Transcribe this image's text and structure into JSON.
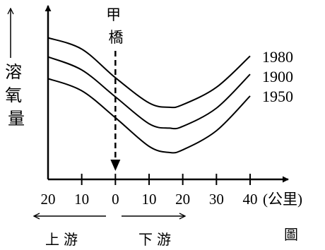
{
  "chart_data": {
    "type": "line",
    "title": "",
    "xlabel": "",
    "ylabel": "溶氧量",
    "x_unit": "(公里)",
    "x_tick_labels": [
      "20",
      "10",
      "0",
      "10",
      "20",
      "30",
      "40"
    ],
    "x_tick_values": [
      -20,
      -10,
      0,
      10,
      20,
      30,
      40
    ],
    "xlim": [
      -20,
      40
    ],
    "ylim": [
      0,
      10
    ],
    "grid": false,
    "legend": "curve-end labels (right)",
    "bridge": {
      "label": "甲橋",
      "x": 0
    },
    "upstream_label": "上游",
    "downstream_label": "下游",
    "figure_label": "圖",
    "series": [
      {
        "name": "1980",
        "x": [
          -20,
          -10,
          0,
          10,
          16,
          20,
          30,
          40
        ],
        "y": [
          8.15,
          7.5,
          5.85,
          4.4,
          4.15,
          4.3,
          5.3,
          7.1
        ]
      },
      {
        "name": "1900",
        "x": [
          -20,
          -10,
          0,
          10,
          16,
          20,
          30,
          40
        ],
        "y": [
          7.05,
          6.3,
          4.75,
          3.2,
          2.95,
          3.05,
          4.1,
          6.05
        ]
      },
      {
        "name": "1950",
        "x": [
          -20,
          -10,
          0,
          10,
          16,
          20,
          30,
          40
        ],
        "y": [
          5.8,
          5.1,
          3.55,
          1.9,
          1.55,
          1.7,
          2.8,
          4.8
        ]
      }
    ]
  }
}
